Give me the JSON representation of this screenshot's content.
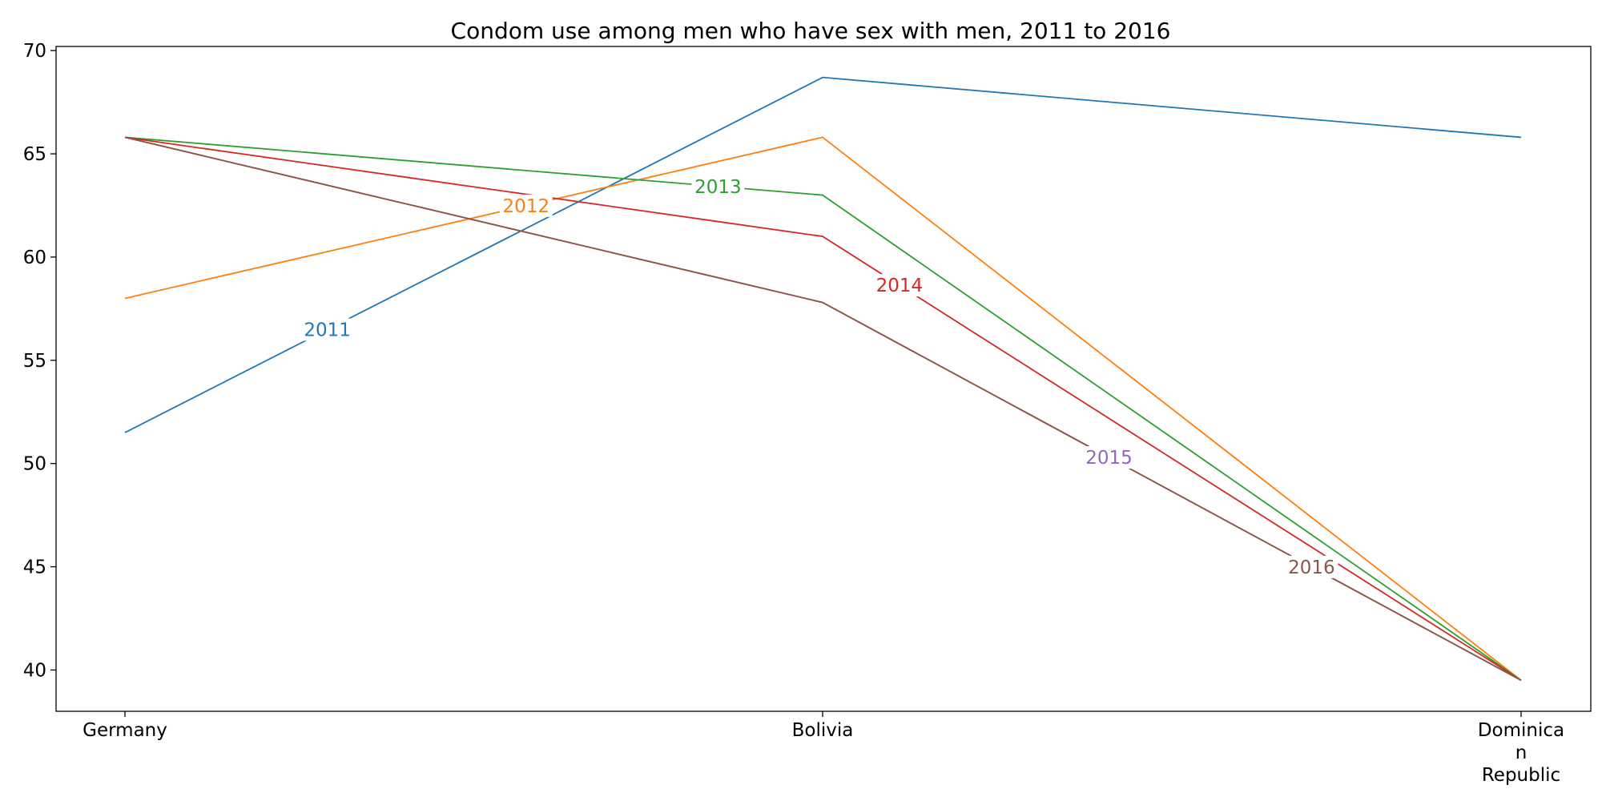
{
  "chart_data": {
    "type": "line",
    "title": "Condom use among men who have sex with men, 2011 to 2016",
    "xlabel": "",
    "ylabel": "",
    "categories": [
      "Germany",
      "Bolivia",
      "Dominican Republic"
    ],
    "category_tick_lines": [
      [
        "Germany"
      ],
      [
        "Bolivia"
      ],
      [
        "Dominica",
        "n",
        "Republic"
      ]
    ],
    "ylim": [
      38,
      70.2
    ],
    "yticks": [
      40,
      45,
      50,
      55,
      60,
      65,
      70
    ],
    "grid": false,
    "series": [
      {
        "name": "2011",
        "color": "#1f77b4",
        "label_color": "#1f77b4",
        "values": [
          51.5,
          68.7,
          65.8
        ]
      },
      {
        "name": "2012",
        "color": "#ff7f0e",
        "label_color": "#ff7f0e",
        "values": [
          58.0,
          65.8,
          39.5
        ]
      },
      {
        "name": "2013",
        "color": "#2ca02c",
        "label_color": "#2ca02c",
        "values": [
          65.8,
          63.0,
          39.5
        ]
      },
      {
        "name": "2014",
        "color": "#d62728",
        "label_color": "#d62728",
        "values": [
          65.8,
          61.0,
          39.5
        ]
      },
      {
        "name": "2015",
        "color": "#8c564b",
        "label_color": "#9467bd",
        "values": [
          65.8,
          57.8,
          39.5
        ]
      },
      {
        "name": "2016",
        "color": "#8c564b",
        "label_color": "#8c564b",
        "values": [
          65.8,
          57.8,
          39.5
        ]
      }
    ]
  }
}
